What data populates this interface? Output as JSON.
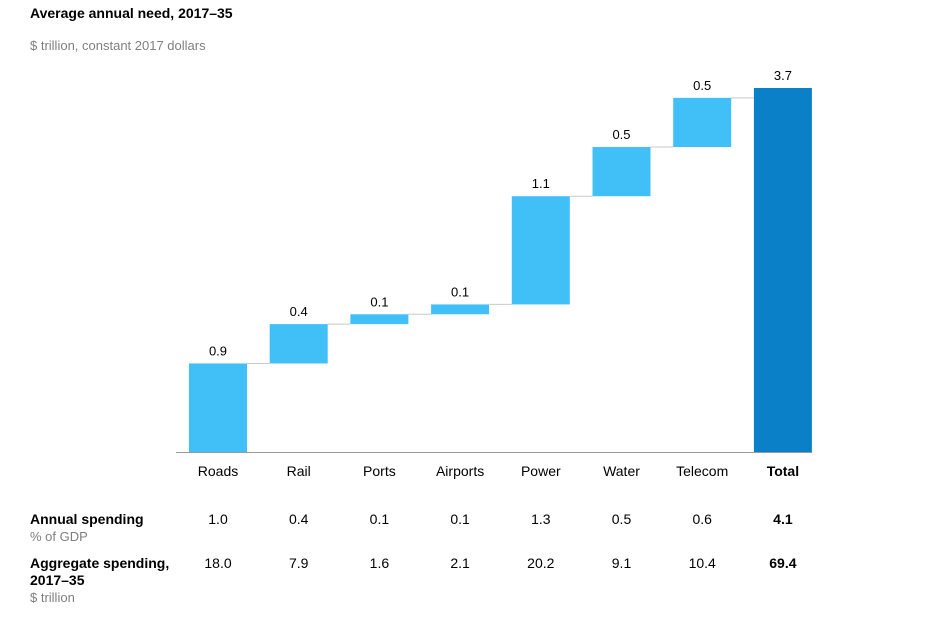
{
  "chart_data": {
    "type": "waterfall",
    "title": "Average annual need, 2017–35",
    "subtitle": "$ trillion, constant 2017 dollars",
    "categories": [
      "Roads",
      "Rail",
      "Ports",
      "Airports",
      "Power",
      "Water",
      "Telecom",
      "Total"
    ],
    "values": [
      0.9,
      0.4,
      0.1,
      0.1,
      1.1,
      0.5,
      0.5,
      3.7
    ],
    "value_labels": [
      "0.9",
      "0.4",
      "0.1",
      "0.1",
      "1.1",
      "0.5",
      "0.5",
      "3.7"
    ],
    "total_index": 7,
    "ylim": [
      0,
      3.7
    ],
    "colors": {
      "increment": "#40c0f6",
      "total": "#0a80c8",
      "connector": "#c8c8c8",
      "axis": "#999999"
    }
  },
  "table": {
    "annual": {
      "label": "Annual spending",
      "sublabel": "% of GDP",
      "values": [
        "1.0",
        "0.4",
        "0.1",
        "0.1",
        "1.3",
        "0.5",
        "0.6",
        "4.1"
      ]
    },
    "aggregate": {
      "label_line1": "Aggregate spending,",
      "label_line2": "2017–35",
      "sublabel": "$ trillion",
      "values": [
        "18.0",
        "7.9",
        "1.6",
        "2.1",
        "20.2",
        "9.1",
        "10.4",
        "69.4"
      ]
    }
  }
}
